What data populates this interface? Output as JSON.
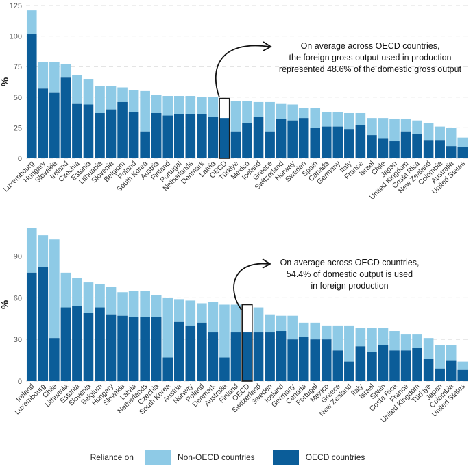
{
  "colors": {
    "non_oecd": "#8ECAE6",
    "oecd": "#0B5D99",
    "grid": "#DCDCDC",
    "highlight": "#1a1a1a"
  },
  "legend": {
    "title": "Reliance on",
    "non_oecd_label": "Non-OECD countries",
    "oecd_label": "OECD countries"
  },
  "chart_data": [
    {
      "type": "bar",
      "stacked": true,
      "ylabel": "%",
      "ylim": [
        0,
        125
      ],
      "yticks": [
        0,
        25,
        50,
        75,
        100,
        125
      ],
      "grid": true,
      "highlight_category": "OECD",
      "annotation": [
        "On average across OECD countries,",
        "the foreign gross output used in production",
        "represented 48.6% of the domestic gross output"
      ],
      "categories": [
        "Luxembourg",
        "Hungary",
        "Slovakia",
        "Ireland",
        "Czechia",
        "Estonia",
        "Lithuania",
        "Slovenia",
        "Belgium",
        "Poland",
        "South Korea",
        "Austria",
        "Finland",
        "Portugal",
        "Netherlands",
        "Denmark",
        "Latvia",
        "OECD",
        "Türkiye",
        "Mexico",
        "Iceland",
        "Greece",
        "Switzerland",
        "Norway",
        "Sweden",
        "Spain",
        "Canada",
        "Germany",
        "Italy",
        "France",
        "Israel",
        "Chile",
        "Japan",
        "United Kingdom",
        "Costa Rica",
        "New Zealand",
        "Colombia",
        "Australia",
        "United States"
      ],
      "series": [
        {
          "name": "OECD countries",
          "values": [
            102,
            57,
            54,
            66,
            45,
            44,
            37,
            40,
            46,
            38,
            22,
            37,
            35,
            36,
            36,
            36,
            34,
            33,
            22,
            29,
            34,
            22,
            32,
            31,
            33,
            25,
            26,
            26,
            24,
            27,
            19,
            16,
            14,
            22,
            20,
            15,
            15,
            10,
            9
          ]
        },
        {
          "name": "Non-OECD countries",
          "values": [
            19,
            22,
            25,
            11,
            23,
            21,
            22,
            19,
            12,
            18,
            33,
            15,
            16,
            15,
            15,
            14,
            16,
            16,
            25,
            18,
            12,
            24,
            13,
            13,
            8,
            16,
            12,
            12,
            13,
            10,
            14,
            17,
            18,
            10,
            11,
            14,
            11,
            15,
            8
          ]
        }
      ]
    },
    {
      "type": "bar",
      "stacked": true,
      "ylabel": "%",
      "ylim": [
        0,
        110
      ],
      "yticks": [
        0,
        30,
        60,
        90
      ],
      "grid": true,
      "highlight_category": "OECD",
      "annotation": [
        "On average across OECD countries,",
        "54.4% of domestic output is used",
        "in foreign production"
      ],
      "categories": [
        "Ireland",
        "Luxembourg",
        "Chile",
        "Lithuania",
        "Estonia",
        "Slovenia",
        "Belgium",
        "Hungary",
        "Slovakia",
        "Latvia",
        "Netherlands",
        "Czechia",
        "South Korea",
        "Austria",
        "Norway",
        "Poland",
        "Denmark",
        "Australia",
        "Finland",
        "OECD",
        "Switzerland",
        "Sweden",
        "Iceland",
        "Germany",
        "Canada",
        "Portugal",
        "Mexico",
        "Greece",
        "New Zealand",
        "Italy",
        "Israel",
        "Spain",
        "Costa Rica",
        "France",
        "United Kingdom",
        "Türkiye",
        "Japan",
        "Colombia",
        "United States"
      ],
      "series": [
        {
          "name": "OECD countries",
          "values": [
            78,
            82,
            31,
            53,
            54,
            49,
            53,
            48,
            47,
            46,
            46,
            46,
            17,
            43,
            40,
            42,
            35,
            17,
            35,
            35,
            35,
            35,
            36,
            30,
            32,
            30,
            30,
            22,
            14,
            25,
            21,
            26,
            22,
            22,
            24,
            16,
            9,
            15,
            8
          ]
        },
        {
          "name": "Non-OECD countries",
          "values": [
            32,
            23,
            71,
            25,
            20,
            22,
            17,
            20,
            17,
            19,
            19,
            16,
            43,
            16,
            18,
            14,
            22,
            38,
            20,
            20,
            18,
            13,
            11,
            17,
            10,
            12,
            10,
            18,
            26,
            13,
            17,
            12,
            14,
            12,
            10,
            15,
            17,
            11,
            6
          ]
        }
      ]
    }
  ]
}
